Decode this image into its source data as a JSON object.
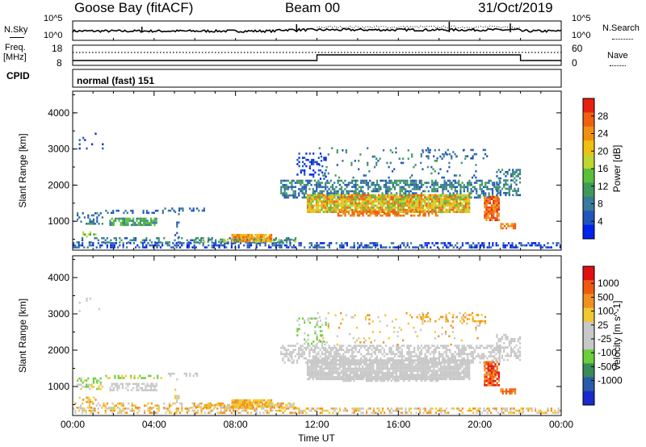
{
  "header": {
    "station": "Goose Bay (fitACF)",
    "beam": "Beam 00",
    "date": "31/Oct/2019"
  },
  "top_panels": {
    "nsky_label": "N.Sky",
    "nsearch_label": "N.Search",
    "nsky_ticks": [
      "10^5",
      "10^0"
    ],
    "nsky_right_ticks": [
      "10^5",
      "10^0"
    ],
    "freq_label_1": "Freq.",
    "freq_label_2": "[MHz]",
    "freq_ticks": [
      "18",
      "8"
    ],
    "nave_label": "Nave",
    "nave_ticks": [
      "60",
      "0"
    ],
    "cpid_label": "CPID",
    "cpid_text": "normal (fast) 151"
  },
  "chart_data": [
    {
      "type": "heatmap",
      "name": "Power",
      "ylabel": "Slant Range [km]",
      "xlabel": "Time UT",
      "yticks": [
        "1000",
        "2000",
        "3000",
        "4000"
      ],
      "xticks": [
        "00:00",
        "04:00",
        "08:00",
        "12:00",
        "16:00",
        "20:00",
        "00:00"
      ],
      "ylim": [
        200,
        4600
      ],
      "xlim_hours": [
        0,
        24
      ],
      "colorbar": {
        "label": "Power [dB]",
        "ticks": [
          "4",
          "8",
          "12",
          "16",
          "20",
          "24",
          "28"
        ],
        "colors": [
          "#0022ee",
          "#2255bb",
          "#3a7a9a",
          "#3f9a5a",
          "#5abf3a",
          "#bfd630",
          "#f0c010",
          "#f09010",
          "#f06010",
          "#e82010"
        ]
      }
    },
    {
      "type": "heatmap",
      "name": "Velocity",
      "ylabel": "Slant Range [km]",
      "xlabel": "Time UT",
      "yticks": [
        "1000",
        "2000",
        "3000",
        "4000"
      ],
      "xticks": [
        "00:00",
        "04:00",
        "08:00",
        "12:00",
        "16:00",
        "20:00",
        "00:00"
      ],
      "ylim": [
        200,
        4600
      ],
      "xlim_hours": [
        0,
        24
      ],
      "colorbar": {
        "label": "Velocity [m s^-1]",
        "ticks": [
          "1000",
          "500",
          "100",
          "25",
          "-25",
          "-100",
          "-500",
          "-1000"
        ],
        "colors": [
          "#1a2acc",
          "#2a5aaa",
          "#3a8a5a",
          "#6acf3a",
          "#c8c8c8",
          "#c8c8c8",
          "#f0c830",
          "#f09020",
          "#f05a10",
          "#e01010"
        ]
      }
    }
  ]
}
